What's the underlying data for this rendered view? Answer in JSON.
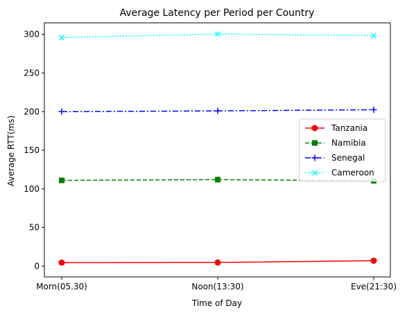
{
  "chart_data": {
    "type": "line",
    "title": "Average Latency per Period per Country",
    "xlabel": "Time of Day",
    "ylabel": "Average RTT(ms)",
    "categories": [
      "Morn(05.30)",
      "Noon(13:30)",
      "Eve(21:30)"
    ],
    "ylim": [
      -14,
      315
    ],
    "yticks": [
      0,
      50,
      100,
      150,
      200,
      250,
      300
    ],
    "grid": false,
    "legend_position": "center-right",
    "series": [
      {
        "name": "Tanzania",
        "values": [
          4.5,
          4.7,
          7.0
        ],
        "color": "#ff0000",
        "linestyle": "solid",
        "marker": "circle"
      },
      {
        "name": "Namibia",
        "values": [
          111,
          112,
          110.5
        ],
        "color": "#008000",
        "linestyle": "dashed",
        "marker": "square"
      },
      {
        "name": "Senegal",
        "values": [
          200,
          201,
          202.5
        ],
        "color": "#0000ff",
        "linestyle": "dashdot",
        "marker": "plus"
      },
      {
        "name": "Cameroon",
        "values": [
          296,
          300.5,
          298.5
        ],
        "color": "#00ffff",
        "linestyle": "dotted",
        "marker": "x"
      }
    ]
  }
}
